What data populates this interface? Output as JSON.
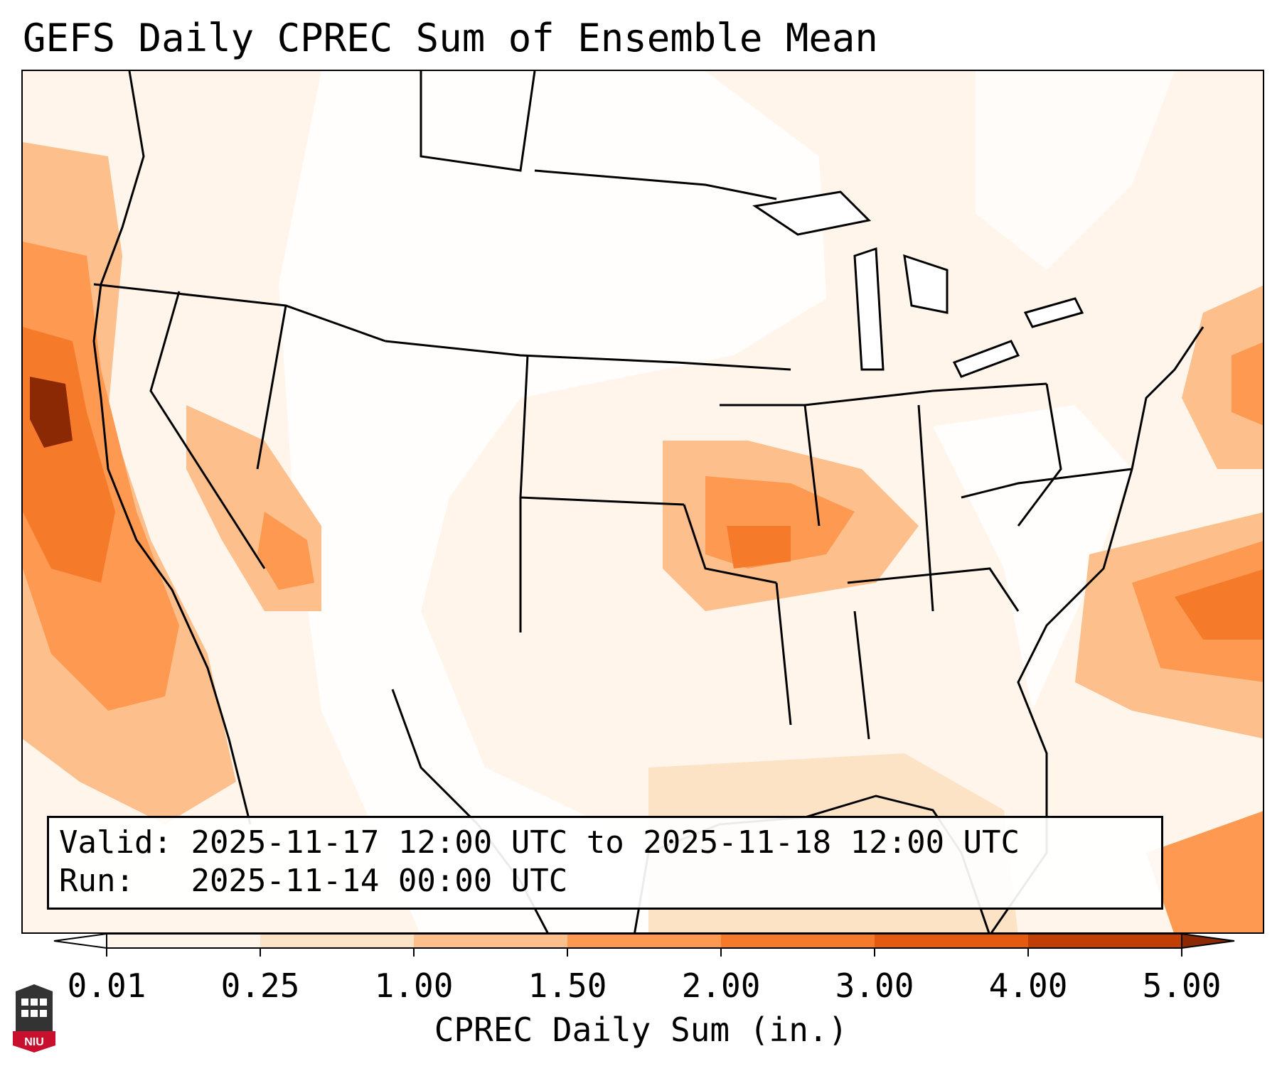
{
  "title": "GEFS Daily CPREC Sum of Ensemble Mean",
  "info": {
    "valid_label": "Valid:",
    "valid_value": "2025-11-17 12:00 UTC to 2025-11-18 12:00 UTC",
    "run_label": "Run:",
    "run_value": "2025-11-14 00:00 UTC"
  },
  "colorbar": {
    "ticks": [
      "0.01",
      "0.25",
      "1.00",
      "1.50",
      "2.00",
      "3.00",
      "4.00",
      "5.00"
    ],
    "label": "CPREC Daily Sum (in.)",
    "colors": [
      "#fff5eb",
      "#fde3c6",
      "#fdc08c",
      "#fd9950",
      "#f57a2a",
      "#e35a10",
      "#c13e04",
      "#8a2903"
    ]
  },
  "logo": {
    "text": "NIU",
    "color": "#c8102e"
  }
}
